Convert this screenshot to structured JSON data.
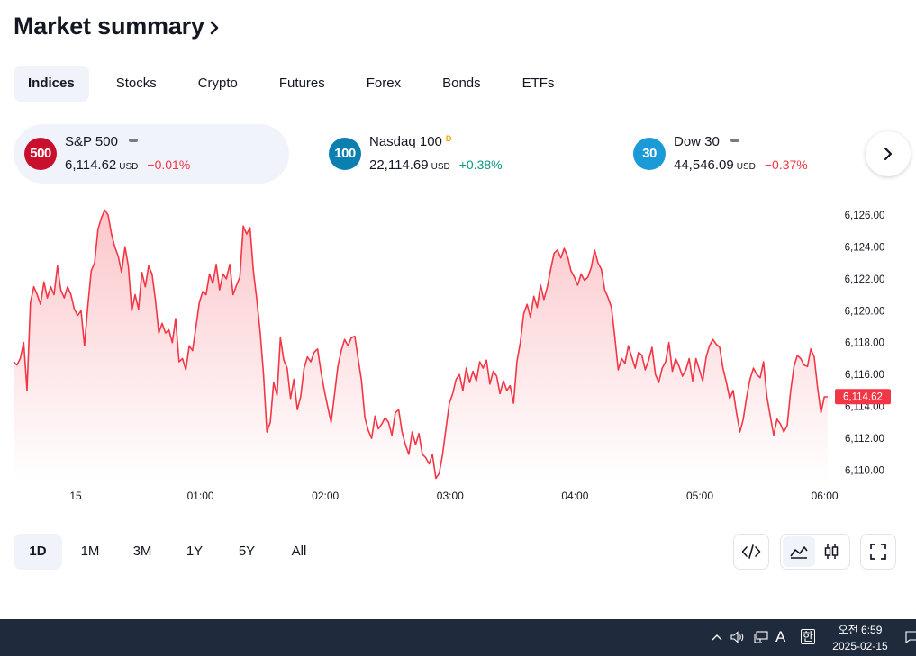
{
  "header": {
    "title": "Market summary"
  },
  "tabs": [
    {
      "label": "Indices",
      "active": true
    },
    {
      "label": "Stocks"
    },
    {
      "label": "Crypto"
    },
    {
      "label": "Futures"
    },
    {
      "label": "Forex"
    },
    {
      "label": "Bonds"
    },
    {
      "label": "ETFs"
    }
  ],
  "tickers": [
    {
      "badge": "500",
      "badge_color": "#c8102e",
      "name": "S&P 500",
      "status": "dash",
      "price": "6,114.62",
      "unit": "USD",
      "change": "−0.01%",
      "direction": "down",
      "active": true
    },
    {
      "badge": "100",
      "badge_color": "#0b7fb0",
      "name": "Nasdaq 100",
      "status": "D",
      "price": "22,114.69",
      "unit": "USD",
      "change": "+0.38%",
      "direction": "up"
    },
    {
      "badge": "30",
      "badge_color": "#1a9bd7",
      "name": "Dow 30",
      "status": "dash",
      "price": "44,546.09",
      "unit": "USD",
      "change": "−0.37%",
      "direction": "down"
    }
  ],
  "chart_data": {
    "type": "area",
    "x_ticks": [
      "15",
      "01:00",
      "02:00",
      "03:00",
      "04:00",
      "05:00",
      "06:00"
    ],
    "y_ticks": [
      "6,126.00",
      "6,124.00",
      "6,122.00",
      "6,120.00",
      "6,118.00",
      "6,116.00",
      "6,114.00",
      "6,112.00",
      "6,110.00"
    ],
    "ylim": [
      6109.3,
      6126.5
    ],
    "last_price_label": "6,114.62",
    "line_color": "#f23645",
    "values": [
      6116.8,
      6116.6,
      6117.0,
      6118.0,
      6115.0,
      6120.5,
      6121.5,
      6121.0,
      6120.4,
      6121.8,
      6120.8,
      6121.5,
      6121.0,
      6122.8,
      6121.3,
      6120.8,
      6121.5,
      6121.0,
      6120.1,
      6119.7,
      6120.0,
      6117.8,
      6120.3,
      6122.5,
      6123.0,
      6125.1,
      6125.8,
      6126.3,
      6126.0,
      6124.8,
      6124.0,
      6123.4,
      6122.4,
      6124.0,
      6122.8,
      6120.0,
      6121.0,
      6120.1,
      6122.4,
      6121.5,
      6122.8,
      6122.3,
      6120.7,
      6118.6,
      6119.2,
      6118.6,
      6118.8,
      6118.0,
      6119.5,
      6116.8,
      6117.0,
      6116.3,
      6117.8,
      6117.5,
      6119.0,
      6120.5,
      6121.2,
      6121.0,
      6122.3,
      6121.7,
      6122.9,
      6121.3,
      6122.3,
      6122.0,
      6122.9,
      6121.0,
      6121.6,
      6122.1,
      6125.3,
      6124.8,
      6125.2,
      6122.5,
      6120.7,
      6118.7,
      6116.0,
      6112.4,
      6113.0,
      6115.5,
      6114.7,
      6118.3,
      6116.9,
      6116.4,
      6114.5,
      6115.7,
      6113.8,
      6114.6,
      6116.4,
      6117.1,
      6116.8,
      6117.4,
      6117.6,
      6116.2,
      6115.0,
      6114.0,
      6113.0,
      6114.7,
      6116.5,
      6117.5,
      6118.2,
      6117.8,
      6118.3,
      6118.4,
      6117.0,
      6115.6,
      6113.3,
      6112.5,
      6112.0,
      6113.4,
      6112.6,
      6112.9,
      6113.3,
      6113.0,
      6112.2,
      6113.6,
      6113.8,
      6112.4,
      6111.6,
      6111.0,
      6112.4,
      6111.6,
      6112.3,
      6111.0,
      6110.8,
      6110.4,
      6111.0,
      6109.5,
      6109.8,
      6111.0,
      6112.6,
      6114.2,
      6114.8,
      6115.7,
      6116.0,
      6115.0,
      6116.4,
      6115.5,
      6116.2,
      6115.6,
      6116.8,
      6116.4,
      6116.9,
      6115.4,
      6116.2,
      6115.9,
      6114.8,
      6115.6,
      6115.0,
      6115.3,
      6114.2,
      6116.8,
      6118.0,
      6119.8,
      6120.4,
      6119.6,
      6120.9,
      6120.2,
      6121.6,
      6120.7,
      6121.5,
      6122.6,
      6123.6,
      6123.8,
      6123.3,
      6123.9,
      6123.4,
      6122.5,
      6122.1,
      6121.6,
      6122.3,
      6121.9,
      6122.1,
      6122.7,
      6123.8,
      6123.0,
      6122.6,
      6121.3,
      6120.8,
      6120.2,
      6118.3,
      6116.3,
      6117.0,
      6116.7,
      6117.8,
      6117.1,
      6116.4,
      6117.4,
      6117.2,
      6116.3,
      6116.9,
      6117.7,
      6116.0,
      6115.5,
      6116.4,
      6116.8,
      6118.0,
      6116.2,
      6117.0,
      6116.5,
      6115.9,
      6116.3,
      6117.0,
      6115.6,
      6117.0,
      6116.3,
      6115.6,
      6117.1,
      6117.8,
      6118.2,
      6117.9,
      6117.7,
      6116.4,
      6115.5,
      6114.5,
      6115.0,
      6113.6,
      6112.4,
      6113.2,
      6114.6,
      6115.7,
      6116.4,
      6116.0,
      6115.8,
      6116.8,
      6114.6,
      6113.4,
      6112.2,
      6113.2,
      6112.9,
      6112.4,
      6112.8,
      6114.9,
      6116.5,
      6117.2,
      6117.0,
      6116.6,
      6116.5,
      6117.6,
      6117.1,
      6115.2,
      6113.6,
      6114.6,
      6114.6
    ]
  },
  "ranges": [
    {
      "label": "1D",
      "active": true
    },
    {
      "label": "1M"
    },
    {
      "label": "3M"
    },
    {
      "label": "1Y"
    },
    {
      "label": "5Y"
    },
    {
      "label": "All"
    }
  ],
  "taskbar": {
    "time": "오전 6:59",
    "date": "2025-02-15",
    "ime_a": "A",
    "ime_han": "한"
  }
}
